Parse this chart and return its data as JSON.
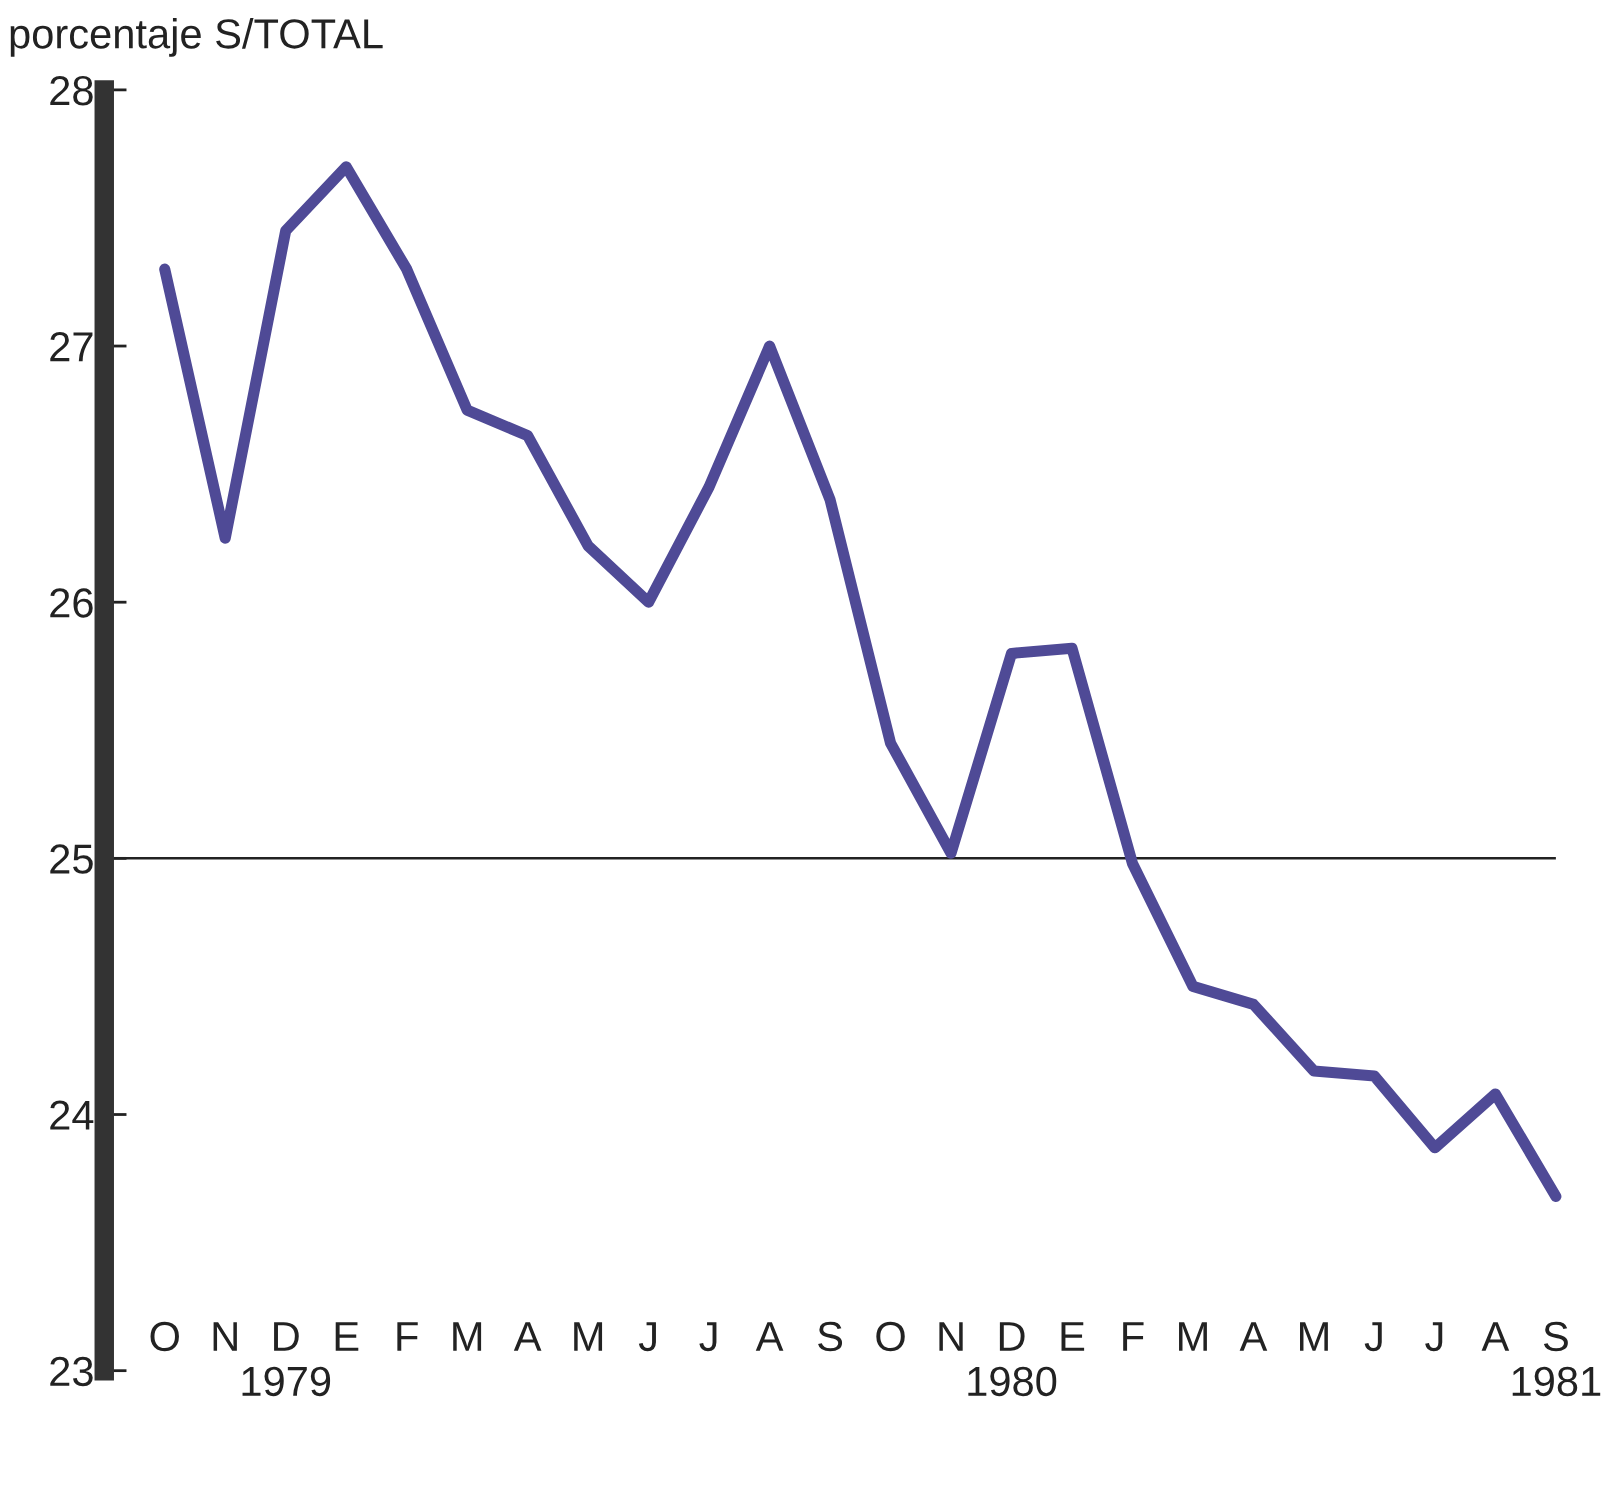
{
  "chart_data": {
    "type": "line",
    "ylabel": "porcentaje S/TOTAL",
    "categories": [
      "O",
      "N",
      "D\n1979",
      "E",
      "F",
      "M",
      "A",
      "M",
      "J",
      "J",
      "A",
      "S",
      "O",
      "N",
      "D\n1980",
      "E",
      "F",
      "M",
      "A",
      "M",
      "J",
      "J",
      "A",
      "S\n1981"
    ],
    "series": [
      {
        "color": "#4f4a96",
        "values": [
          27.3,
          26.25,
          27.45,
          27.7,
          27.3,
          26.75,
          26.65,
          26.22,
          26.0,
          26.45,
          27.0,
          26.4,
          25.45,
          25.02,
          25.8,
          25.82,
          24.98,
          24.5,
          24.43,
          24.17,
          24.15,
          23.87,
          24.08,
          23.68
        ]
      }
    ],
    "ylim": [
      23,
      28
    ],
    "yticks": [
      23,
      24,
      25,
      26,
      27,
      28
    ],
    "ref_lines": [
      {
        "axis": "y",
        "value": 25,
        "color": "#222222"
      }
    ],
    "grid": false,
    "legend": false,
    "line_style": "solid",
    "marker": "none"
  }
}
